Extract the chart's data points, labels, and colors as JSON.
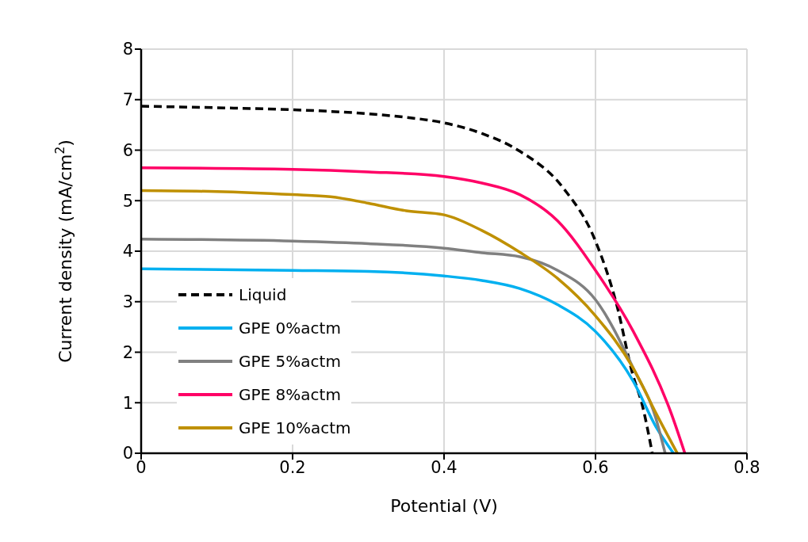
{
  "chart_data": {
    "type": "line",
    "xlabel": "Potential (V)",
    "ylabel": "Current density (mA/cm$^{2}$)",
    "xlim": [
      0,
      0.8
    ],
    "xticks": [
      0,
      0.2,
      0.4,
      0.6,
      0.8
    ],
    "ylim": [
      0,
      8
    ],
    "yticks": [
      0,
      1,
      2,
      3,
      4,
      5,
      6,
      7,
      8
    ],
    "grid": true,
    "legend": "bottom left",
    "marker": "none",
    "series": [
      {
        "name": "Liquid",
        "color": "#000000",
        "line_style": "dashed",
        "x": [
          0,
          0.1,
          0.2,
          0.3,
          0.35,
          0.4,
          0.45,
          0.5,
          0.558,
          0.6,
          0.628,
          0.649,
          0.662,
          0.675
        ],
        "values": [
          6.87,
          6.84,
          6.8,
          6.72,
          6.65,
          6.54,
          6.33,
          5.98,
          5.24,
          4.2,
          2.94,
          1.57,
          0.94,
          0
        ]
      },
      {
        "name": "GPE 0%actm",
        "color": "#00b0f0",
        "line_style": "solid",
        "x": [
          0,
          0.2,
          0.3,
          0.4,
          0.45,
          0.5,
          0.55,
          0.6,
          0.65,
          0.68,
          0.703
        ],
        "values": [
          3.65,
          3.62,
          3.6,
          3.51,
          3.42,
          3.26,
          2.94,
          2.41,
          1.42,
          0.52,
          0
        ]
      },
      {
        "name": "GPE 5%actm",
        "color": "#808080",
        "line_style": "solid",
        "x": [
          0,
          0.2,
          0.3,
          0.4,
          0.45,
          0.5,
          0.55,
          0.6,
          0.65,
          0.68,
          0.692
        ],
        "values": [
          4.24,
          4.2,
          4.15,
          4.06,
          3.97,
          3.89,
          3.62,
          3.04,
          1.68,
          0.68,
          0
        ]
      },
      {
        "name": "GPE 8%actm",
        "color": "#ff0066",
        "line_style": "solid",
        "x": [
          0,
          0.2,
          0.3,
          0.4,
          0.45,
          0.5,
          0.55,
          0.6,
          0.65,
          0.7,
          0.718
        ],
        "values": [
          5.65,
          5.62,
          5.57,
          5.48,
          5.35,
          5.12,
          4.6,
          3.62,
          2.41,
          0.79,
          0
        ]
      },
      {
        "name": "GPE 10%actm",
        "color": "#bf9000",
        "line_style": "solid",
        "x": [
          0,
          0.1,
          0.2,
          0.25,
          0.3,
          0.35,
          0.4,
          0.45,
          0.5,
          0.55,
          0.6,
          0.65,
          0.68,
          0.708
        ],
        "values": [
          5.2,
          5.18,
          5.12,
          5.08,
          4.95,
          4.8,
          4.72,
          4.41,
          3.98,
          3.46,
          2.72,
          1.68,
          0.79,
          0
        ]
      }
    ]
  }
}
